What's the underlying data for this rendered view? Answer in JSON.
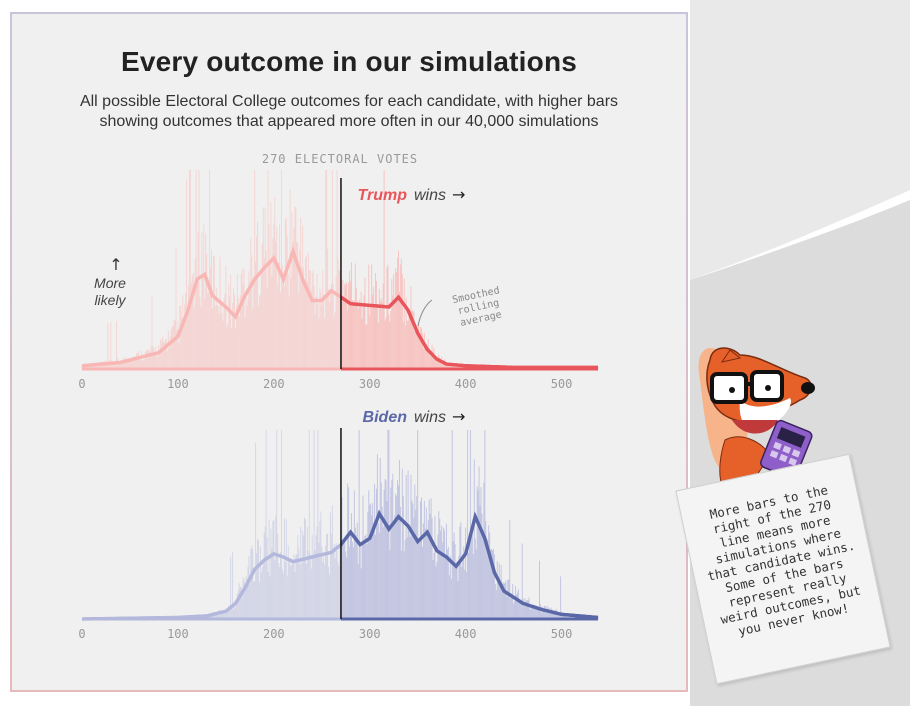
{
  "header": {
    "title": "Every outcome in our simulations",
    "subtitle": "All possible Electoral College outcomes for each candidate, with higher bars showing outcomes that appeared more often in our 40,000 simulations"
  },
  "colors": {
    "trump": "#e8555a",
    "trump_light": "#f8b7b4",
    "biden": "#5a68a8",
    "biden_light": "#b4b8dc",
    "threshold": "#111111"
  },
  "labels": {
    "threshold_label": "270 ELECTORAL VOTES",
    "trump_name": "Trump",
    "biden_name": "Biden",
    "wins": "wins",
    "arrow_right": "→",
    "arrow_up": "↑",
    "more_likely": [
      "More",
      "likely"
    ],
    "smoothed": [
      "Smoothed",
      "rolling",
      "average"
    ]
  },
  "note": {
    "text": "More bars to the right of the 270 line means more simulations where that candidate wins. Some of the bars represent really weird outcomes, but you never know!"
  },
  "chart_data": [
    {
      "type": "bar",
      "name": "Trump",
      "xlabel": "",
      "ylabel": "",
      "xlim": [
        0,
        538
      ],
      "xticks": [
        0,
        100,
        200,
        300,
        400,
        500
      ],
      "threshold": 270,
      "smoothed_average": {
        "x": [
          0,
          40,
          80,
          100,
          110,
          120,
          128,
          136,
          150,
          160,
          170,
          180,
          190,
          200,
          210,
          220,
          230,
          240,
          250,
          260,
          270,
          280,
          300,
          320,
          330,
          340,
          350,
          360,
          370,
          380,
          400,
          450,
          538
        ],
        "y": [
          0.02,
          0.04,
          0.1,
          0.2,
          0.35,
          0.55,
          0.58,
          0.45,
          0.38,
          0.32,
          0.45,
          0.55,
          0.62,
          0.68,
          0.55,
          0.72,
          0.55,
          0.42,
          0.42,
          0.48,
          0.44,
          0.4,
          0.39,
          0.38,
          0.44,
          0.36,
          0.22,
          0.12,
          0.06,
          0.03,
          0.02,
          0.01,
          0.01
        ]
      }
    },
    {
      "type": "bar",
      "name": "Biden",
      "xlabel": "",
      "ylabel": "",
      "xlim": [
        0,
        538
      ],
      "xticks": [
        0,
        100,
        200,
        300,
        400,
        500
      ],
      "threshold": 270,
      "smoothed_average": {
        "x": [
          0,
          100,
          130,
          150,
          160,
          170,
          180,
          190,
          200,
          210,
          220,
          240,
          260,
          270,
          280,
          290,
          300,
          310,
          320,
          330,
          340,
          350,
          360,
          370,
          380,
          390,
          400,
          410,
          420,
          430,
          440,
          460,
          480,
          500,
          538
        ],
        "y": [
          0.0,
          0.01,
          0.02,
          0.05,
          0.1,
          0.2,
          0.32,
          0.38,
          0.42,
          0.4,
          0.37,
          0.4,
          0.43,
          0.48,
          0.56,
          0.48,
          0.52,
          0.68,
          0.58,
          0.66,
          0.6,
          0.5,
          0.56,
          0.44,
          0.4,
          0.34,
          0.42,
          0.66,
          0.52,
          0.3,
          0.18,
          0.1,
          0.06,
          0.03,
          0.01
        ]
      }
    }
  ]
}
